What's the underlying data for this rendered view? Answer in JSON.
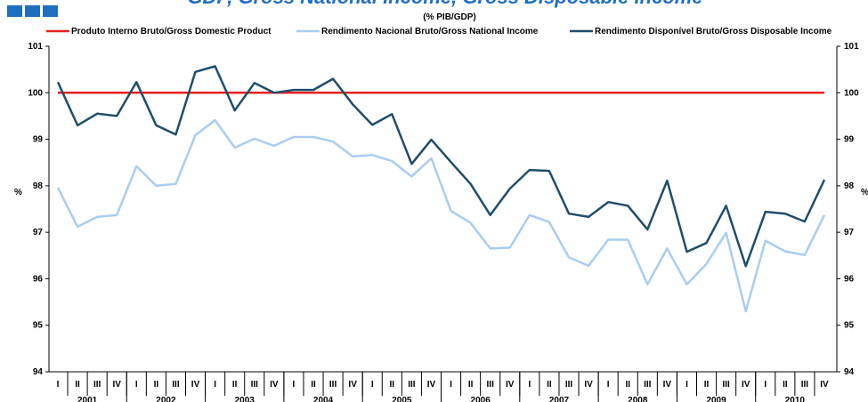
{
  "chart_data": {
    "type": "line",
    "title": "GDP, Gross National Income, Gross Disposable Income",
    "subtitle": "(% PIB/GDP)",
    "y_label": "%",
    "y2_label": "%",
    "categories": [
      "I",
      "II",
      "III",
      "IV",
      "I",
      "II",
      "III",
      "IV",
      "I",
      "II",
      "III",
      "IV",
      "I",
      "II",
      "III",
      "IV",
      "I",
      "II",
      "III",
      "IV",
      "I",
      "II",
      "III",
      "IV",
      "I",
      "II",
      "III",
      "IV",
      "I",
      "II",
      "III",
      "IV",
      "I",
      "II",
      "III",
      "IV",
      "I",
      "II",
      "III",
      "IV"
    ],
    "years": [
      "2001",
      "2002",
      "2003",
      "2004",
      "2005",
      "2006",
      "2007",
      "2008",
      "2009",
      "2010"
    ],
    "ylim": [
      94,
      101
    ],
    "yticks": [
      94,
      95,
      96,
      97,
      98,
      99,
      100,
      101
    ],
    "y2lim": [
      94,
      101
    ],
    "y2ticks": [
      94,
      95,
      96,
      97,
      98,
      99,
      100,
      101
    ],
    "legend": "top",
    "series": [
      {
        "name": "Produto Interno Bruto/Gross Domestic Product",
        "color": "#e8211f",
        "values": [
          100,
          100,
          100,
          100,
          100,
          100,
          100,
          100,
          100,
          100,
          100,
          100,
          100,
          100,
          100,
          100,
          100,
          100,
          100,
          100,
          100,
          100,
          100,
          100,
          100,
          100,
          100,
          100,
          100,
          100,
          100,
          100,
          100,
          100,
          100,
          100,
          100,
          100,
          100,
          100
        ]
      },
      {
        "name": "Rendimento Nacional Bruto/Gross National Income",
        "color": "#a9cdf0",
        "values": [
          97.96,
          97.12,
          97.33,
          97.37,
          98.42,
          98.0,
          98.04,
          99.09,
          99.41,
          98.82,
          99.01,
          98.86,
          99.05,
          99.05,
          98.95,
          98.63,
          98.66,
          98.53,
          98.2,
          98.59,
          97.46,
          97.2,
          96.65,
          96.67,
          97.37,
          97.22,
          96.46,
          96.28,
          96.84,
          96.84,
          95.88,
          96.65,
          95.88,
          96.32,
          96.99,
          95.3,
          96.82,
          96.59,
          96.51,
          97.37
        ]
      },
      {
        "name": "Rendimento Disponível Bruto/Gross Disposable Income",
        "color": "#1f4e6b",
        "values": [
          100.23,
          99.3,
          99.55,
          99.5,
          100.23,
          99.3,
          99.1,
          100.45,
          100.57,
          99.62,
          100.21,
          100.0,
          100.06,
          100.06,
          100.3,
          99.75,
          99.31,
          99.54,
          98.47,
          98.99,
          98.51,
          98.04,
          97.37,
          97.94,
          98.34,
          98.32,
          97.4,
          97.33,
          97.65,
          97.57,
          97.06,
          98.11,
          96.58,
          96.77,
          97.57,
          96.27,
          97.44,
          97.4,
          97.23,
          98.13
        ]
      }
    ]
  }
}
